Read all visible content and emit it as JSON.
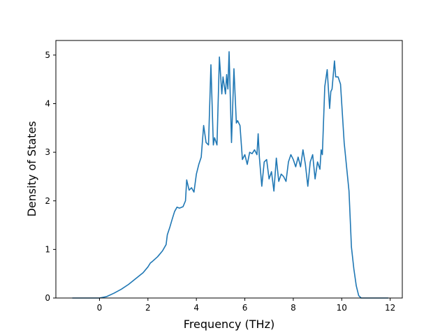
{
  "chart_data": {
    "type": "line",
    "title": "",
    "xlabel": "Frequency (THz)",
    "ylabel": "Density of States",
    "xlim": [
      -1.8,
      12.5
    ],
    "ylim": [
      0,
      5.3
    ],
    "xticks": [
      0,
      2,
      4,
      6,
      8,
      10,
      12
    ],
    "yticks": [
      0,
      1,
      2,
      3,
      4,
      5
    ],
    "xtick_labels": [
      "0",
      "2",
      "4",
      "6",
      "8",
      "10",
      "12"
    ],
    "ytick_labels": [
      "0",
      "1",
      "2",
      "3",
      "4",
      "5"
    ],
    "grid": false,
    "legend": null,
    "line_color": "#1f77b4",
    "series": [
      {
        "x": [
          -1.1,
          -0.5,
          0,
          0.3,
          0.6,
          0.9,
          1.2,
          1.5,
          1.8,
          2.0,
          2.1,
          2.2,
          2.4,
          2.6,
          2.75,
          2.8,
          2.9,
          3.0,
          3.1,
          3.2,
          3.3,
          3.45,
          3.55,
          3.6,
          3.7,
          3.8,
          3.9,
          4.0,
          4.1,
          4.2,
          4.3,
          4.4,
          4.5,
          4.6,
          4.7,
          4.75,
          4.85,
          4.95,
          5.05,
          5.1,
          5.2,
          5.25,
          5.3,
          5.35,
          5.45,
          5.55,
          5.65,
          5.7,
          5.8,
          5.9,
          6.0,
          6.1,
          6.2,
          6.3,
          6.4,
          6.5,
          6.55,
          6.6,
          6.7,
          6.8,
          6.9,
          7.0,
          7.1,
          7.2,
          7.3,
          7.4,
          7.5,
          7.6,
          7.7,
          7.8,
          7.9,
          8.0,
          8.1,
          8.2,
          8.3,
          8.4,
          8.5,
          8.6,
          8.7,
          8.8,
          8.9,
          9.0,
          9.1,
          9.15,
          9.2,
          9.3,
          9.4,
          9.5,
          9.55,
          9.6,
          9.7,
          9.75,
          9.85,
          9.95,
          10.0,
          10.1,
          10.2,
          10.3,
          10.4,
          10.5,
          10.6,
          10.7,
          10.8,
          11.0,
          11.5,
          11.9
        ],
        "y": [
          0,
          0,
          0,
          0.03,
          0.1,
          0.18,
          0.28,
          0.4,
          0.52,
          0.64,
          0.72,
          0.76,
          0.85,
          0.97,
          1.1,
          1.3,
          1.45,
          1.62,
          1.78,
          1.87,
          1.85,
          1.88,
          2.0,
          2.43,
          2.22,
          2.27,
          2.18,
          2.55,
          2.75,
          2.9,
          3.55,
          3.2,
          3.15,
          4.8,
          3.15,
          3.3,
          3.15,
          4.96,
          4.2,
          4.55,
          4.2,
          4.6,
          4.3,
          5.07,
          3.2,
          4.72,
          3.6,
          3.65,
          3.55,
          2.85,
          2.95,
          2.75,
          3.0,
          2.97,
          3.05,
          2.95,
          3.38,
          2.9,
          2.3,
          2.8,
          2.85,
          2.45,
          2.6,
          2.2,
          2.88,
          2.4,
          2.55,
          2.5,
          2.4,
          2.8,
          2.95,
          2.85,
          2.7,
          2.9,
          2.7,
          3.05,
          2.75,
          2.3,
          2.8,
          2.95,
          2.45,
          2.8,
          2.65,
          3.05,
          2.95,
          4.35,
          4.7,
          3.9,
          4.25,
          4.3,
          4.88,
          4.55,
          4.55,
          4.4,
          4.0,
          3.2,
          2.7,
          2.2,
          1.05,
          0.6,
          0.25,
          0.05,
          0,
          0,
          0,
          0
        ]
      }
    ]
  }
}
